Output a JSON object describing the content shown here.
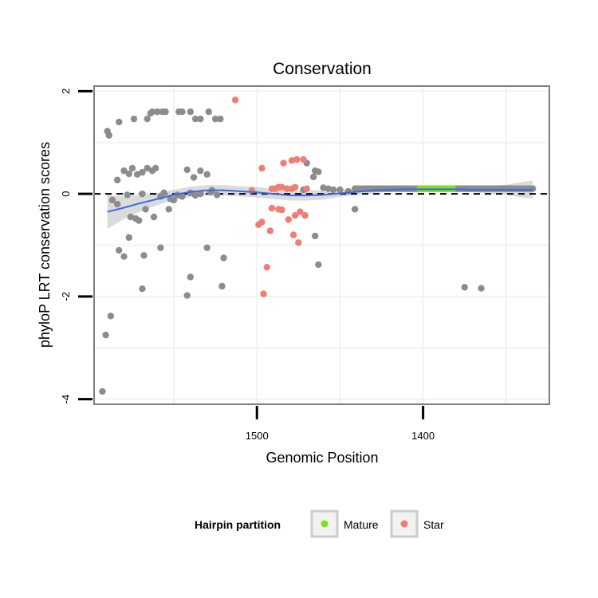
{
  "chart_data": {
    "type": "scatter",
    "title": "Conservation",
    "xlabel": "Genomic Position",
    "ylabel": "phyloP LRT conservation scores",
    "x_reversed": true,
    "xlim": [
      1598,
      1324
    ],
    "ylim": [
      -4.1,
      2.1
    ],
    "x_ticks": [
      1500,
      1400
    ],
    "x_tick_labels": [
      "1500",
      "1400"
    ],
    "y_ticks": [
      -4,
      -2,
      0,
      2
    ],
    "y_tick_labels": [
      "-4",
      "-2",
      "0",
      "2"
    ],
    "grid": true,
    "reference_line": {
      "y": 0,
      "style": "dashed"
    },
    "colors": {
      "other": "#8c8c8c",
      "mature": "#7fe01e",
      "star": "#f07e70",
      "smooth": "#3a6ae4",
      "ribbon": "#bdbdbd",
      "panel_border": "#7f7f7f",
      "grid": "#f2f2f2"
    },
    "legend": {
      "position": "bottom",
      "title": "Hairpin partition",
      "entries": [
        {
          "label": "Mature",
          "color": "#7fe01e"
        },
        {
          "label": "Star",
          "color": "#f07e70"
        }
      ]
    },
    "series": [
      {
        "group": "other",
        "points": [
          [
            1593,
            -3.85
          ],
          [
            1591,
            -2.75
          ],
          [
            1588,
            -2.38
          ],
          [
            1590,
            1.22
          ],
          [
            1589,
            1.14
          ],
          [
            1583,
            1.4
          ],
          [
            1574,
            1.46
          ],
          [
            1566,
            1.46
          ],
          [
            1564,
            1.57
          ],
          [
            1563,
            1.6
          ],
          [
            1560,
            1.6
          ],
          [
            1557,
            1.6
          ],
          [
            1555,
            1.6
          ],
          [
            1547,
            1.6
          ],
          [
            1545,
            1.6
          ],
          [
            1540,
            1.6
          ],
          [
            1537,
            1.46
          ],
          [
            1534,
            1.46
          ],
          [
            1529,
            1.6
          ],
          [
            1525,
            1.46
          ],
          [
            1522,
            1.46
          ],
          [
            1587,
            -0.12
          ],
          [
            1584,
            0.27
          ],
          [
            1580,
            0.45
          ],
          [
            1577,
            0.39
          ],
          [
            1575,
            0.5
          ],
          [
            1572,
            0.38
          ],
          [
            1569,
            0.42
          ],
          [
            1566,
            0.5
          ],
          [
            1563,
            0.45
          ],
          [
            1561,
            0.5
          ],
          [
            1556,
            0.02
          ],
          [
            1552,
            -0.1
          ],
          [
            1548,
            -0.02
          ],
          [
            1542,
            0.47
          ],
          [
            1538,
            0.32
          ],
          [
            1534,
            0.45
          ],
          [
            1530,
            0.38
          ],
          [
            1527,
            0.07
          ],
          [
            1524,
            -0.02
          ],
          [
            1578,
            -0.02
          ],
          [
            1576,
            -0.45
          ],
          [
            1573,
            -0.48
          ],
          [
            1571,
            -0.52
          ],
          [
            1569,
            0.0
          ],
          [
            1567,
            -0.3
          ],
          [
            1562,
            -0.45
          ],
          [
            1558,
            -0.05
          ],
          [
            1553,
            -0.3
          ],
          [
            1550,
            -0.12
          ],
          [
            1545,
            -0.05
          ],
          [
            1540,
            0.02
          ],
          [
            1537,
            -0.03
          ],
          [
            1534,
            0.0
          ],
          [
            1528,
            0.03
          ],
          [
            1583,
            -1.1
          ],
          [
            1580,
            -1.22
          ],
          [
            1577,
            -0.85
          ],
          [
            1568,
            -1.2
          ],
          [
            1558,
            -1.05
          ],
          [
            1540,
            -1.62
          ],
          [
            1530,
            -1.05
          ],
          [
            1520,
            -1.25
          ],
          [
            1569,
            -1.85
          ],
          [
            1521,
            -1.8
          ],
          [
            1542,
            -1.98
          ],
          [
            1584,
            -0.2
          ],
          [
            1472,
            0.08
          ],
          [
            1466,
            0.33
          ],
          [
            1465,
            0.45
          ],
          [
            1463,
            0.43
          ],
          [
            1460,
            0.12
          ],
          [
            1457,
            0.1
          ],
          [
            1454,
            0.08
          ],
          [
            1450,
            0.08
          ],
          [
            1445,
            0.05
          ],
          [
            1441,
            -0.3
          ],
          [
            1465,
            -0.82
          ],
          [
            1463,
            -1.38
          ],
          [
            1470,
            0.6
          ],
          [
            1375,
            -1.82
          ],
          [
            1365,
            -1.84
          ]
        ]
      },
      {
        "group": "other",
        "type": "dense_band",
        "x_range": [
          1441,
          1334
        ],
        "y": 0.1
      },
      {
        "group": "mature",
        "type": "dense_band",
        "x_range": [
          1402,
          1382
        ],
        "y": 0.1
      },
      {
        "group": "star",
        "points": [
          [
            1513,
            1.83
          ],
          [
            1497,
            0.5
          ],
          [
            1503,
            0.07
          ],
          [
            1491,
            0.1
          ],
          [
            1489,
            0.1
          ],
          [
            1487,
            0.13
          ],
          [
            1484,
            0.6
          ],
          [
            1482,
            0.1
          ],
          [
            1479,
            0.1
          ],
          [
            1477,
            0.13
          ],
          [
            1479,
            0.65
          ],
          [
            1476,
            0.67
          ],
          [
            1472,
            0.67
          ],
          [
            1470,
            0.1
          ],
          [
            1485,
            0.13
          ],
          [
            1487,
            -0.3
          ],
          [
            1485,
            -0.31
          ],
          [
            1481,
            -0.5
          ],
          [
            1477,
            -0.42
          ],
          [
            1474,
            -0.35
          ],
          [
            1478,
            -0.8
          ],
          [
            1471,
            -0.42
          ],
          [
            1475,
            -0.95
          ],
          [
            1497,
            -0.55
          ],
          [
            1492,
            -0.72
          ],
          [
            1499,
            -0.6
          ],
          [
            1494,
            -1.43
          ],
          [
            1496,
            -1.95
          ],
          [
            1491,
            -0.28
          ]
        ]
      }
    ],
    "smooth": {
      "method": "loess",
      "x": [
        1590,
        1580,
        1570,
        1560,
        1550,
        1540,
        1530,
        1520,
        1510,
        1500,
        1490,
        1480,
        1470,
        1460,
        1450,
        1440,
        1430,
        1420,
        1410,
        1400,
        1390,
        1380,
        1370,
        1360,
        1350,
        1340,
        1334
      ],
      "y": [
        -0.35,
        -0.27,
        -0.18,
        -0.1,
        -0.02,
        0.04,
        0.07,
        0.07,
        0.05,
        0.03,
        0.0,
        -0.03,
        -0.03,
        -0.02,
        0.01,
        0.04,
        0.07,
        0.08,
        0.09,
        0.09,
        0.09,
        0.09,
        0.08,
        0.08,
        0.08,
        0.08,
        0.08
      ],
      "band": [
        0.33,
        0.22,
        0.16,
        0.12,
        0.1,
        0.1,
        0.1,
        0.1,
        0.1,
        0.1,
        0.1,
        0.1,
        0.1,
        0.09,
        0.07,
        0.06,
        0.05,
        0.04,
        0.04,
        0.04,
        0.04,
        0.04,
        0.05,
        0.07,
        0.1,
        0.15,
        0.18
      ]
    }
  }
}
